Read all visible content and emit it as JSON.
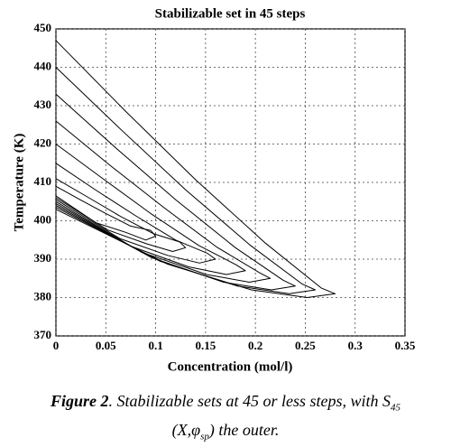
{
  "chart_data": {
    "type": "closed-curve",
    "title": "Stabilizable set in 45 steps",
    "xlabel": "Concentration (mol/l)",
    "ylabel": "Temperature (K)",
    "xlim": [
      0,
      0.35
    ],
    "ylim": [
      370,
      450
    ],
    "xticks": [
      0,
      0.05,
      0.1,
      0.15,
      0.2,
      0.25,
      0.3,
      0.35
    ],
    "yticks": [
      370,
      380,
      390,
      400,
      410,
      420,
      430,
      440,
      450
    ],
    "grid": true,
    "color": "#000000",
    "series": [
      {
        "x": [
          0,
          0.07,
          0.14,
          0.21,
          0.266,
          0.28,
          0.252,
          0.196,
          0.112,
          0
        ],
        "values": [
          447,
          428.5,
          410.7,
          394.2,
          382.5,
          381,
          380,
          382,
          388.7,
          403
        ]
      },
      {
        "x": [
          0,
          0.065,
          0.13,
          0.195,
          0.247,
          0.26,
          0.234,
          0.182,
          0.104,
          0
        ],
        "values": [
          440,
          423.8,
          408.1,
          393.6,
          383.5,
          382,
          381,
          383,
          389.5,
          403.5
        ]
      },
      {
        "x": [
          0,
          0.06,
          0.12,
          0.18,
          0.228,
          0.24,
          0.216,
          0.168,
          0.096,
          0
        ],
        "values": [
          433,
          419,
          405.5,
          393,
          384.5,
          383,
          382,
          384,
          390.4,
          404
        ]
      },
      {
        "x": [
          0,
          0.054,
          0.108,
          0.161,
          0.204,
          0.215,
          0.194,
          0.151,
          0.086,
          0
        ],
        "values": [
          426,
          414.5,
          403.5,
          393.2,
          386.5,
          385,
          384,
          386,
          391.8,
          404.5
        ]
      },
      {
        "x": [
          0,
          0.048,
          0.095,
          0.143,
          0.181,
          0.19,
          0.171,
          0.133,
          0.076,
          0
        ],
        "values": [
          420,
          410.8,
          401.9,
          393.6,
          388.5,
          387,
          386,
          388,
          393.3,
          405
        ]
      },
      {
        "x": [
          0,
          0.04,
          0.08,
          0.12,
          0.152,
          0.16,
          0.144,
          0.112,
          0.064,
          0
        ],
        "values": [
          415,
          408,
          401.3,
          395,
          391.5,
          390,
          389,
          391,
          395.4,
          405.5
        ]
      },
      {
        "x": [
          0,
          0.033,
          0.065,
          0.098,
          0.124,
          0.13,
          0.117,
          0.091,
          0.052,
          0
        ],
        "values": [
          411,
          406,
          401.1,
          396.6,
          394.5,
          393,
          392,
          394,
          397.6,
          406
        ]
      },
      {
        "x": [
          0,
          0.025,
          0.05,
          0.075,
          0.095,
          0.1,
          0.09,
          0.07,
          0.04,
          0
        ],
        "values": [
          409,
          405.4,
          401.9,
          398.6,
          397.5,
          396,
          395,
          397,
          399.5,
          406.5
        ]
      }
    ]
  },
  "caption": {
    "label": "Figure 2",
    "text": ". Stabilizable sets at 45 or less steps, with S",
    "sub1": "45",
    "line2a": "(X,φ",
    "sub2": "sp",
    "line2b": ") the outer."
  }
}
